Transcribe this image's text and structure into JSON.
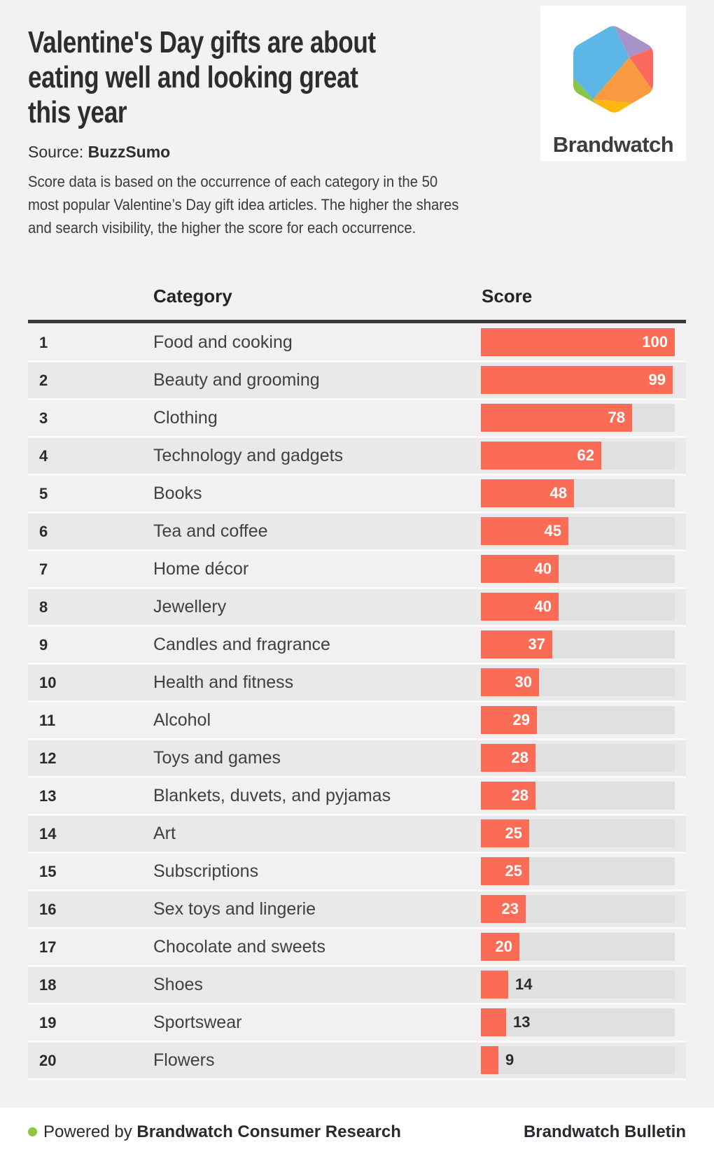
{
  "page": {
    "background": "#f2f2f2"
  },
  "header": {
    "title": "Valentine's Day gifts are about eating well and looking great this year",
    "title_lines": [
      "Valentine's Day gifts are about",
      "eating well and looking great",
      "this year"
    ],
    "source_label": "Source:",
    "source_value": "BuzzSumo",
    "description_lines": [
      "Score data is based on the occurrence of each category in the 50",
      "most popular Valentine’s Day gift idea articles. The higher the shares",
      "and search visibility, the higher the score for each occurrence."
    ]
  },
  "logo": {
    "brand": "Brandwatch",
    "facets": {
      "blue": "#5cb7e6",
      "purple": "#a893c9",
      "coral": "#fa6b5d",
      "orange": "#f89b40",
      "yellow": "#fdb70d",
      "green": "#8bc541"
    }
  },
  "table": {
    "category_header": "Category",
    "score_header": "Score"
  },
  "chart_data": {
    "type": "bar",
    "orientation": "horizontal",
    "title": "Valentine's Day gifts are about eating well and looking great this year",
    "xlabel": "Score",
    "ylabel": "Category",
    "xlim": [
      0,
      100
    ],
    "bar_color": "#fa6c55",
    "track_color": "#e0e0e0",
    "inside_label_threshold": 20,
    "rows": [
      {
        "rank": 1,
        "category": "Food and cooking",
        "score": 100
      },
      {
        "rank": 2,
        "category": "Beauty and grooming",
        "score": 99
      },
      {
        "rank": 3,
        "category": "Clothing",
        "score": 78
      },
      {
        "rank": 4,
        "category": "Technology and gadgets",
        "score": 62
      },
      {
        "rank": 5,
        "category": "Books",
        "score": 48
      },
      {
        "rank": 6,
        "category": "Tea and coffee",
        "score": 45
      },
      {
        "rank": 7,
        "category": "Home décor",
        "score": 40
      },
      {
        "rank": 8,
        "category": "Jewellery",
        "score": 40
      },
      {
        "rank": 9,
        "category": "Candles and fragrance",
        "score": 37
      },
      {
        "rank": 10,
        "category": "Health and fitness",
        "score": 30
      },
      {
        "rank": 11,
        "category": "Alcohol",
        "score": 29
      },
      {
        "rank": 12,
        "category": "Toys and games",
        "score": 28
      },
      {
        "rank": 13,
        "category": "Blankets, duvets, and pyjamas",
        "score": 28
      },
      {
        "rank": 14,
        "category": "Art",
        "score": 25
      },
      {
        "rank": 15,
        "category": "Subscriptions",
        "score": 25
      },
      {
        "rank": 16,
        "category": "Sex toys and lingerie",
        "score": 23
      },
      {
        "rank": 17,
        "category": "Chocolate and sweets",
        "score": 20
      },
      {
        "rank": 18,
        "category": "Shoes",
        "score": 14
      },
      {
        "rank": 19,
        "category": "Sportswear",
        "score": 13
      },
      {
        "rank": 20,
        "category": "Flowers",
        "score": 9
      }
    ]
  },
  "footer": {
    "dot_color": "#8dc63f",
    "powered_prefix": "Powered by ",
    "powered_brand": "Brandwatch Consumer Research",
    "bulletin": "Brandwatch Bulletin"
  }
}
